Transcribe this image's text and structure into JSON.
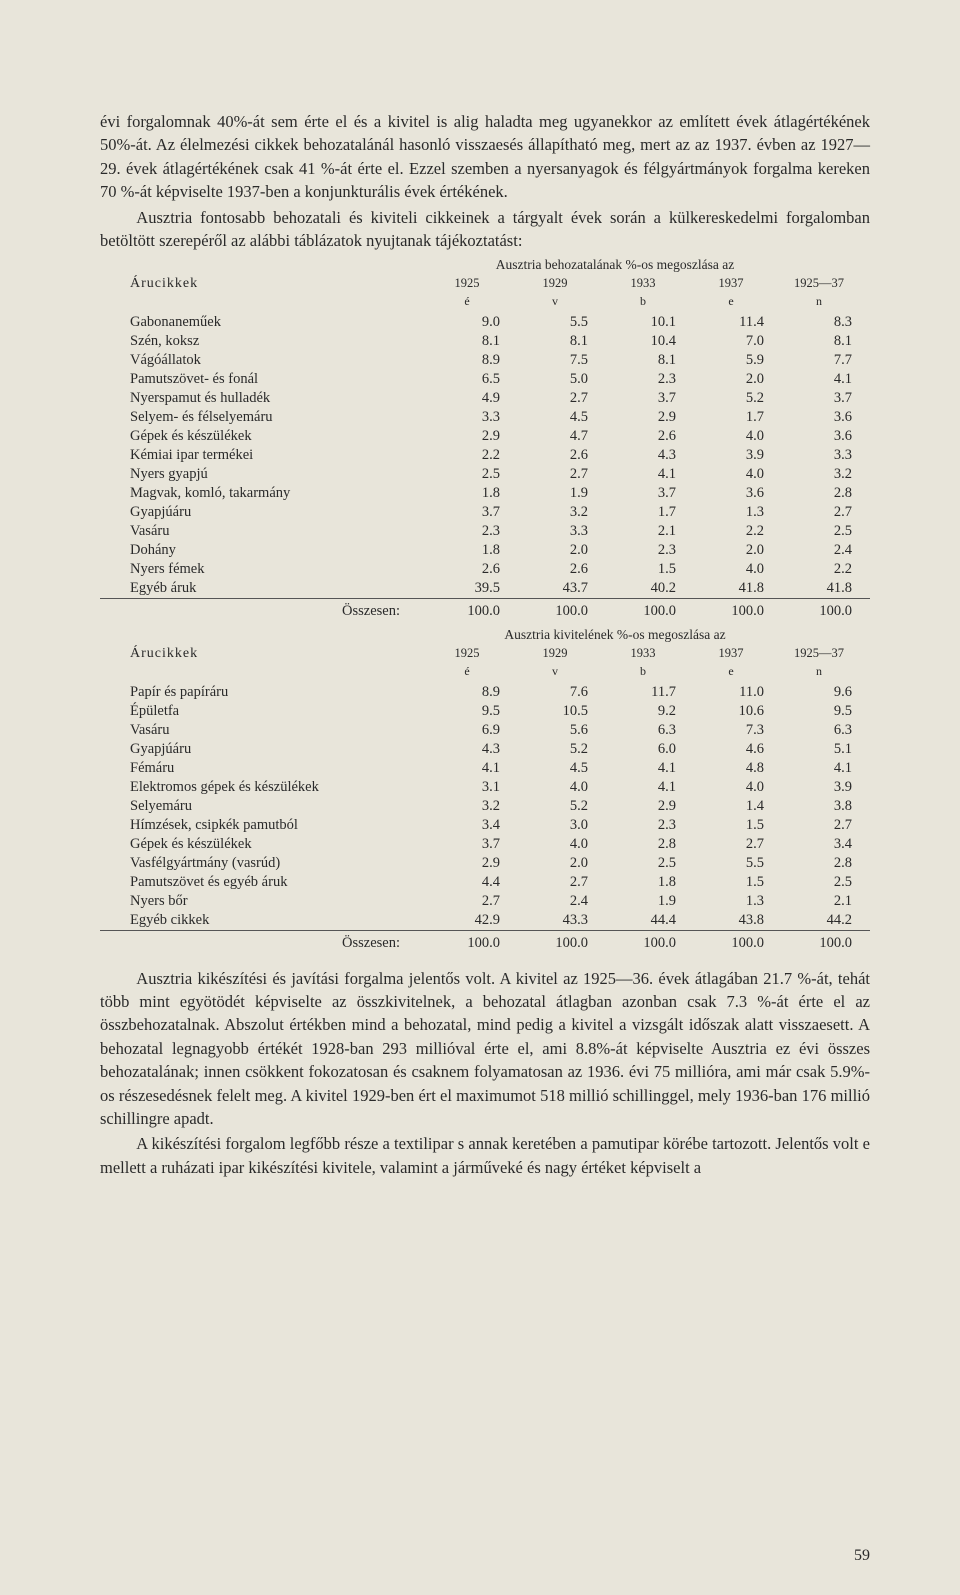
{
  "para1": "évi forgalomnak 40%-át sem érte el és a kivitel is alig haladta meg ugyanekkor az említett évek átlagértékének 50%-át. Az élelmezési cikkek behozatalánál hasonló visszaesés állapítható meg, mert az az 1937. évben az 1927—29. évek átlagértékének csak 41 %-át érte el. Ezzel szemben a nyersanyagok és félgyártmányok forgalma kereken 70 %-át képviselte 1937-ben a konjunkturális évek értékének.",
  "para2": "Ausztria fontosabb behozatali és kiviteli cikkeinek a tárgyalt évek során a külkereskedelmi forgalomban betöltött szerepéről az alábbi táblázatok nyujtanak tájékoztatást:",
  "table1": {
    "caption": "Ausztria behozatalának %-os megoszlása az",
    "header_label": "Árucikkek",
    "years": [
      "1925",
      "1929",
      "1933",
      "1937",
      "1925—37"
    ],
    "subs": [
      "é",
      "v",
      "b",
      "e",
      "n"
    ],
    "rows": [
      {
        "label": "Gabonaneműek",
        "vals": [
          "9.0",
          "5.5",
          "10.1",
          "11.4",
          "8.3"
        ]
      },
      {
        "label": "Szén, koksz",
        "vals": [
          "8.1",
          "8.1",
          "10.4",
          "7.0",
          "8.1"
        ]
      },
      {
        "label": "Vágóállatok",
        "vals": [
          "8.9",
          "7.5",
          "8.1",
          "5.9",
          "7.7"
        ]
      },
      {
        "label": "Pamutszövet- és fonál",
        "vals": [
          "6.5",
          "5.0",
          "2.3",
          "2.0",
          "4.1"
        ]
      },
      {
        "label": "Nyerspamut és hulladék",
        "vals": [
          "4.9",
          "2.7",
          "3.7",
          "5.2",
          "3.7"
        ]
      },
      {
        "label": "Selyem- és félselyemáru",
        "vals": [
          "3.3",
          "4.5",
          "2.9",
          "1.7",
          "3.6"
        ]
      },
      {
        "label": "Gépek és készülékek",
        "vals": [
          "2.9",
          "4.7",
          "2.6",
          "4.0",
          "3.6"
        ]
      },
      {
        "label": "Kémiai ipar termékei",
        "vals": [
          "2.2",
          "2.6",
          "4.3",
          "3.9",
          "3.3"
        ]
      },
      {
        "label": "Nyers gyapjú",
        "vals": [
          "2.5",
          "2.7",
          "4.1",
          "4.0",
          "3.2"
        ]
      },
      {
        "label": "Magvak, komló, takarmány",
        "vals": [
          "1.8",
          "1.9",
          "3.7",
          "3.6",
          "2.8"
        ]
      },
      {
        "label": "Gyapjúáru",
        "vals": [
          "3.7",
          "3.2",
          "1.7",
          "1.3",
          "2.7"
        ]
      },
      {
        "label": "Vasáru",
        "vals": [
          "2.3",
          "3.3",
          "2.1",
          "2.2",
          "2.5"
        ]
      },
      {
        "label": "Dohány",
        "vals": [
          "1.8",
          "2.0",
          "2.3",
          "2.0",
          "2.4"
        ]
      },
      {
        "label": "Nyers fémek",
        "vals": [
          "2.6",
          "2.6",
          "1.5",
          "4.0",
          "2.2"
        ]
      },
      {
        "label": "Egyéb áruk",
        "vals": [
          "39.5",
          "43.7",
          "40.2",
          "41.8",
          "41.8"
        ]
      }
    ],
    "total": {
      "label": "Összesen:",
      "vals": [
        "100.0",
        "100.0",
        "100.0",
        "100.0",
        "100.0"
      ]
    }
  },
  "table2": {
    "caption": "Ausztria kivitelének %-os megoszlása az",
    "header_label": "Árucikkek",
    "years": [
      "1925",
      "1929",
      "1933",
      "1937",
      "1925—37"
    ],
    "subs": [
      "é",
      "v",
      "b",
      "e",
      "n"
    ],
    "rows": [
      {
        "label": "Papír és papíráru",
        "vals": [
          "8.9",
          "7.6",
          "11.7",
          "11.0",
          "9.6"
        ]
      },
      {
        "label": "Épületfa",
        "vals": [
          "9.5",
          "10.5",
          "9.2",
          "10.6",
          "9.5"
        ]
      },
      {
        "label": "Vasáru",
        "vals": [
          "6.9",
          "5.6",
          "6.3",
          "7.3",
          "6.3"
        ]
      },
      {
        "label": "Gyapjúáru",
        "vals": [
          "4.3",
          "5.2",
          "6.0",
          "4.6",
          "5.1"
        ]
      },
      {
        "label": "Fémáru",
        "vals": [
          "4.1",
          "4.5",
          "4.1",
          "4.8",
          "4.1"
        ]
      },
      {
        "label": "Elektromos gépek és készülékek",
        "vals": [
          "3.1",
          "4.0",
          "4.1",
          "4.0",
          "3.9"
        ]
      },
      {
        "label": "Selyemáru",
        "vals": [
          "3.2",
          "5.2",
          "2.9",
          "1.4",
          "3.8"
        ]
      },
      {
        "label": "Hímzések, csipkék pamutból",
        "vals": [
          "3.4",
          "3.0",
          "2.3",
          "1.5",
          "2.7"
        ]
      },
      {
        "label": "Gépek és készülékek",
        "vals": [
          "3.7",
          "4.0",
          "2.8",
          "2.7",
          "3.4"
        ]
      },
      {
        "label": "Vasfélgyártmány (vasrúd)",
        "vals": [
          "2.9",
          "2.0",
          "2.5",
          "5.5",
          "2.8"
        ]
      },
      {
        "label": "Pamutszövet és egyéb áruk",
        "vals": [
          "4.4",
          "2.7",
          "1.8",
          "1.5",
          "2.5"
        ]
      },
      {
        "label": "Nyers bőr",
        "vals": [
          "2.7",
          "2.4",
          "1.9",
          "1.3",
          "2.1"
        ]
      },
      {
        "label": "Egyéb cikkek",
        "vals": [
          "42.9",
          "43.3",
          "44.4",
          "43.8",
          "44.2"
        ]
      }
    ],
    "total": {
      "label": "Összesen:",
      "vals": [
        "100.0",
        "100.0",
        "100.0",
        "100.0",
        "100.0"
      ]
    }
  },
  "para3": "Ausztria kikészítési és javítási forgalma jelentős volt. A kivitel az 1925—36. évek átlagában 21.7 %-át, tehát több mint egyötödét képviselte az összkivitelnek, a behozatal átlagban azonban csak 7.3 %-át érte el az összbehozatalnak. Abszolut értékben mind a behozatal, mind pedig a kivitel a vizsgált időszak alatt visszaesett. A behozatal legnagyobb értékét 1928-ban 293 millióval érte el, ami 8.8%-át képviselte Ausztria ez évi összes behozatalának; innen csökkent fokozatosan és csaknem folyamatosan az 1936. évi 75 millióra, ami már csak 5.9%-os részesedésnek felelt meg. A kivitel 1929-ben ért el maximumot 518 millió schillinggel, mely 1936-ban 176 millió schillingre apadt.",
  "para4": "A kikészítési forgalom legfőbb része a textilipar s annak keretében a pamutipar körébe tartozott. Jelentős volt e mellett a ruházati ipar kikészítési kivitele, valamint a járműveké és nagy értéket képviselt a",
  "page_number": "59"
}
